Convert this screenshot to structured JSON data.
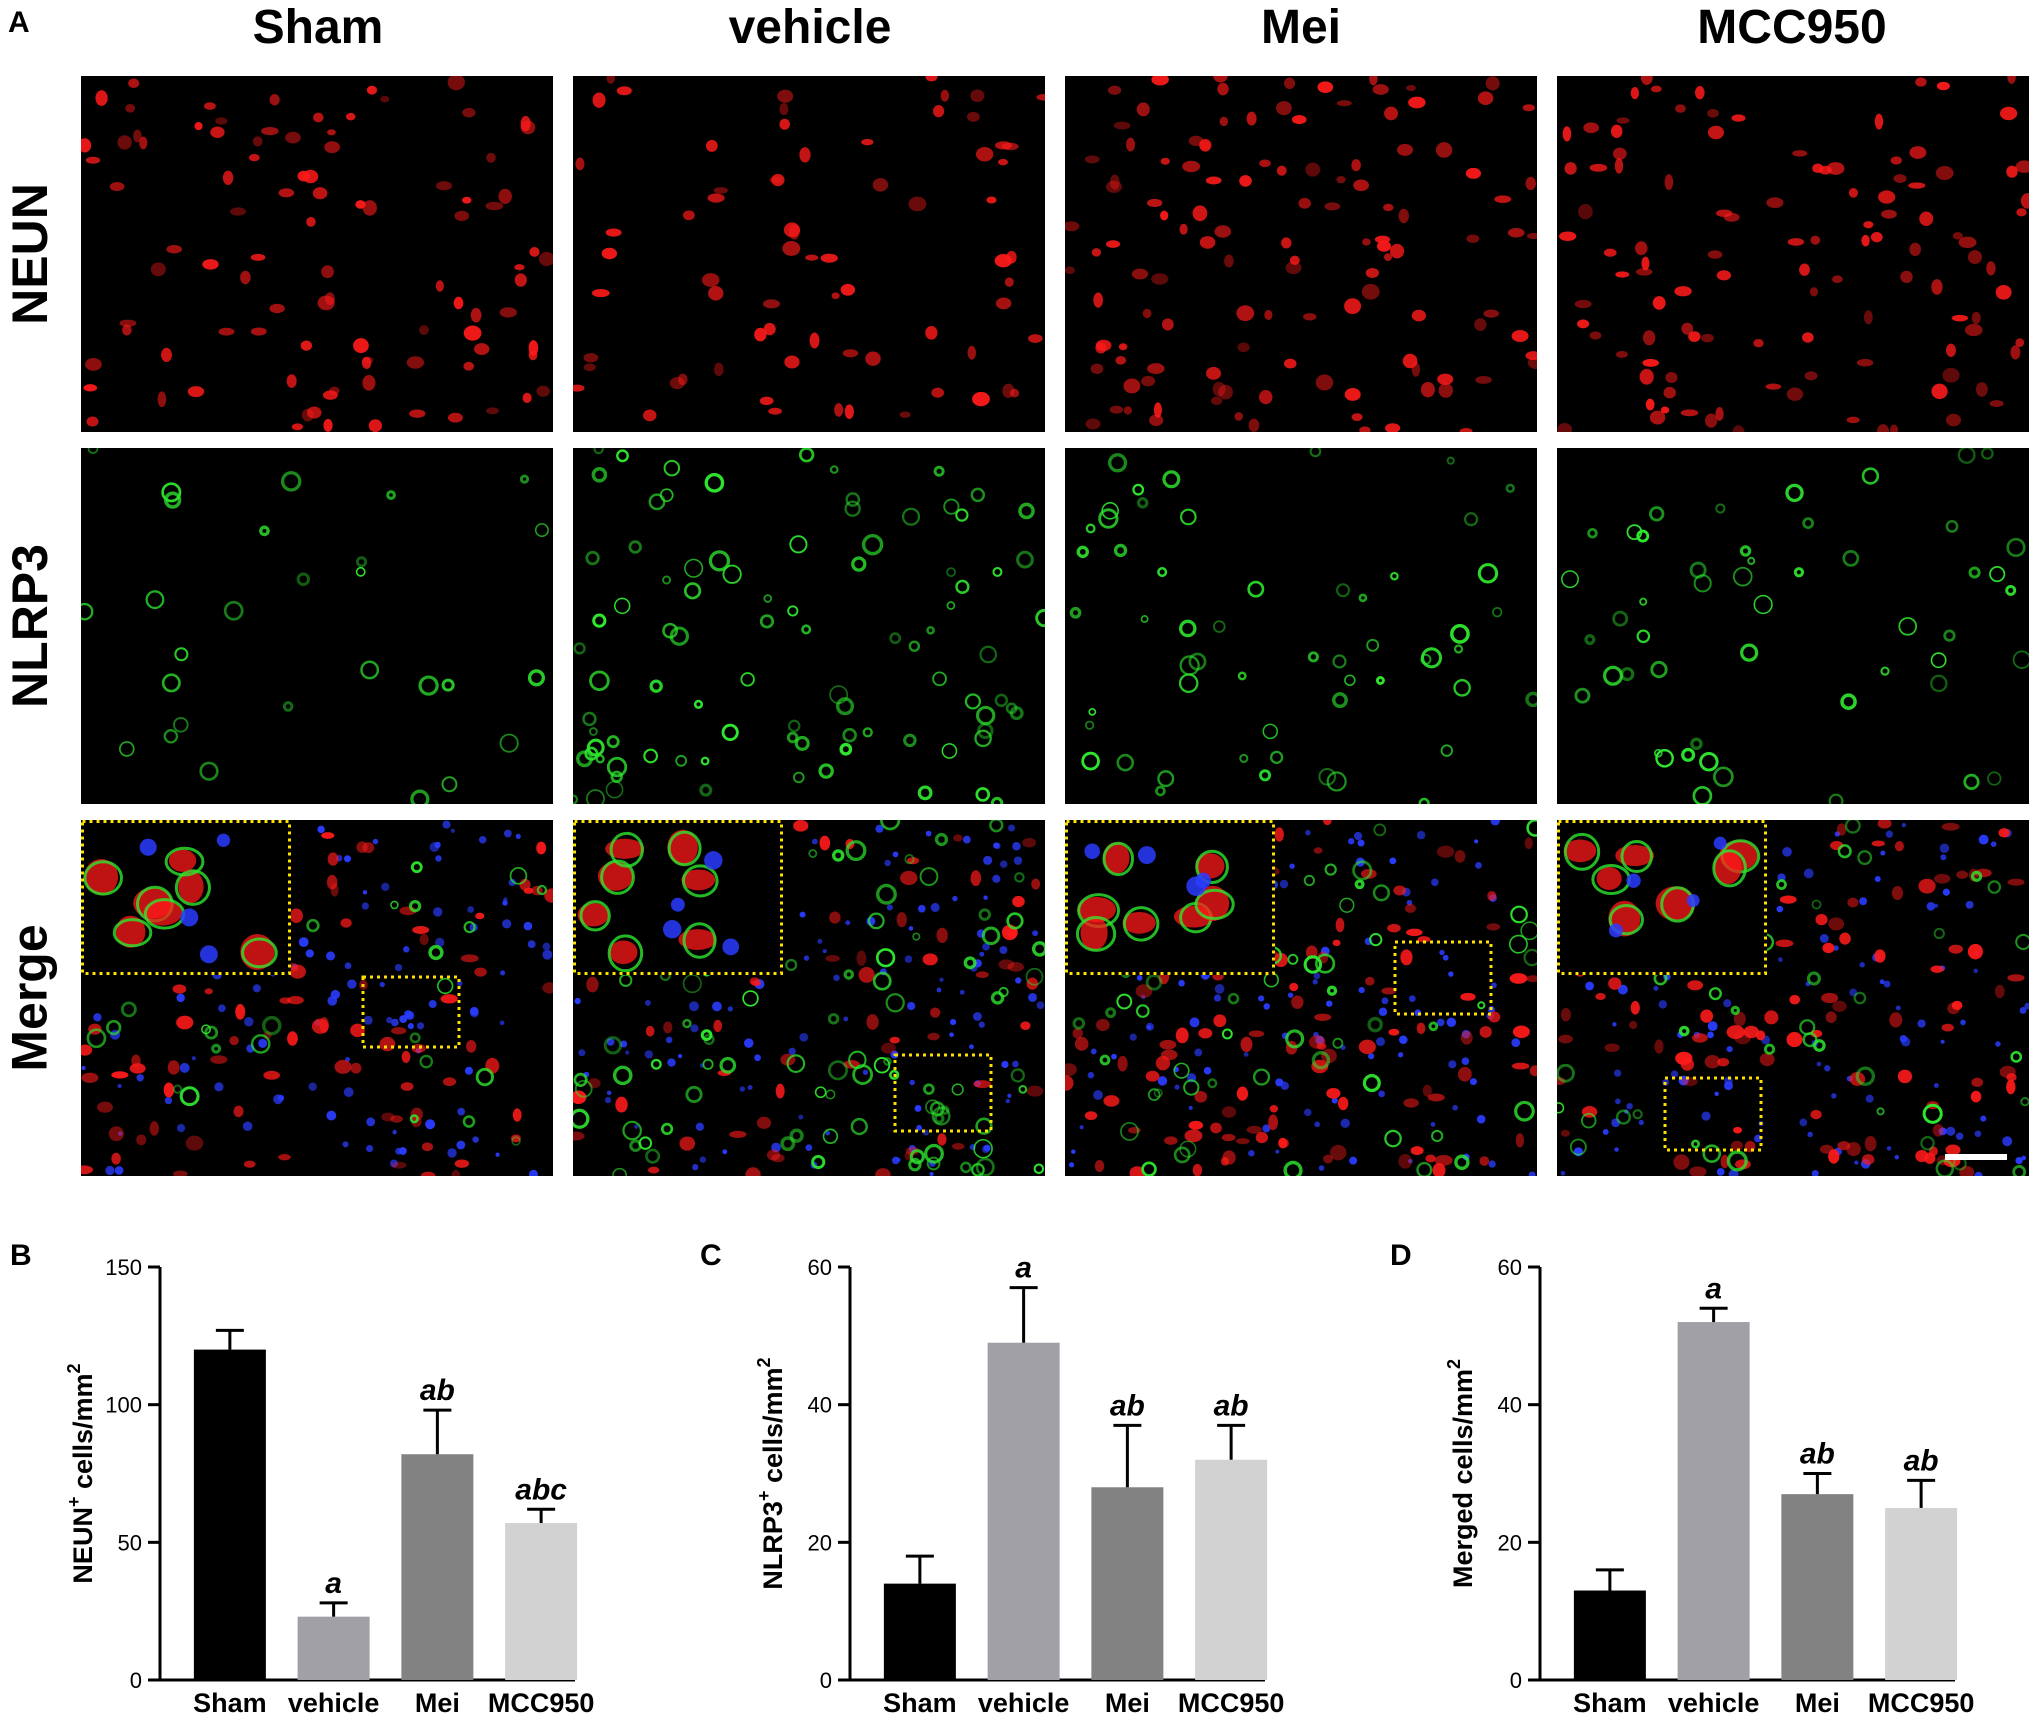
{
  "figure": {
    "panel_a_label": "A",
    "columns": [
      "Sham",
      "vehicle",
      "Mei",
      "MCC950"
    ],
    "rows": [
      "NEUN",
      "NLRP3",
      "Merge"
    ],
    "colors": {
      "neun": "#ff1a1a",
      "nlrp3": "#2ee62e",
      "dapi": "#2a3cff",
      "inset_border": "#ffe100",
      "scale_bar": "#ffffff"
    }
  },
  "chart_data": [
    {
      "panel": "B",
      "type": "bar",
      "categories": [
        "Sham",
        "vehicle",
        "Mei",
        "MCC950"
      ],
      "values": [
        120,
        23,
        82,
        57
      ],
      "errors": [
        7,
        5,
        16,
        5
      ],
      "annotations": [
        "",
        "a",
        "ab",
        "abc"
      ],
      "bar_colors": [
        "#000000",
        "#a0a0a6",
        "#828282",
        "#d2d2d2"
      ],
      "ylabel_main": "NEUN",
      "ylabel_sup": "+",
      "ylabel_rest": " cells/mm",
      "ylabel_sup2": "2",
      "ylim": [
        0,
        150
      ],
      "yticks": [
        "0",
        "50",
        "100",
        "150"
      ],
      "ytick_values": [
        0,
        50,
        100,
        150
      ]
    },
    {
      "panel": "C",
      "type": "bar",
      "categories": [
        "Sham",
        "vehicle",
        "Mei",
        "MCC950"
      ],
      "values": [
        14,
        49,
        28,
        32
      ],
      "errors": [
        4,
        8,
        9,
        5
      ],
      "annotations": [
        "",
        "a",
        "ab",
        "ab"
      ],
      "bar_colors": [
        "#000000",
        "#a0a0a6",
        "#828282",
        "#d2d2d2"
      ],
      "ylabel_main": "NLRP3",
      "ylabel_sup": "+",
      "ylabel_rest": " cells/mm",
      "ylabel_sup2": "2",
      "ylim": [
        0,
        60
      ],
      "yticks": [
        "0",
        "20",
        "40",
        "60"
      ],
      "ytick_values": [
        0,
        20,
        40,
        60
      ]
    },
    {
      "panel": "D",
      "type": "bar",
      "categories": [
        "Sham",
        "vehicle",
        "Mei",
        "MCC950"
      ],
      "values": [
        13,
        52,
        27,
        25
      ],
      "errors": [
        3,
        2,
        3,
        4
      ],
      "annotations": [
        "",
        "a",
        "ab",
        "ab"
      ],
      "bar_colors": [
        "#000000",
        "#a0a0a6",
        "#828282",
        "#d2d2d2"
      ],
      "ylabel_main": "Merged cells/mm",
      "ylabel_sup": "2",
      "ylabel_rest": "",
      "ylabel_sup2": "",
      "ylim": [
        0,
        60
      ],
      "yticks": [
        "0",
        "20",
        "40",
        "60"
      ],
      "ytick_values": [
        0,
        20,
        40,
        60
      ]
    }
  ]
}
